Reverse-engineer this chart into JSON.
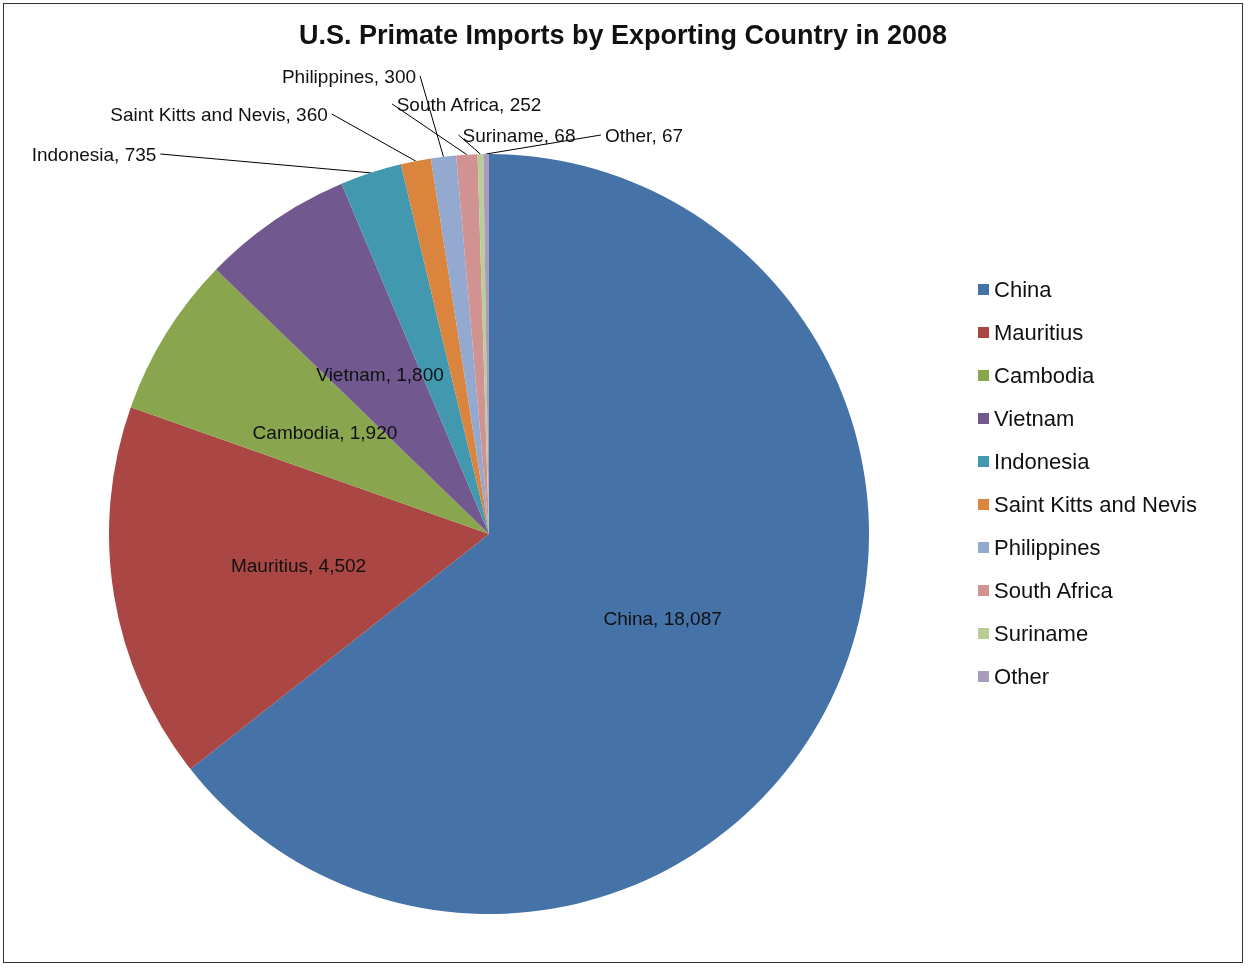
{
  "chart_data": {
    "type": "pie",
    "title": "U.S. Primate Imports by Exporting Country in 2008",
    "categories": [
      "China",
      "Mauritius",
      "Cambodia",
      "Vietnam",
      "Indonesia",
      "Saint Kitts and Nevis",
      "Philippines",
      "South Africa",
      "Suriname",
      "Other"
    ],
    "values": [
      18087,
      4502,
      1920,
      1800,
      735,
      360,
      300,
      252,
      68,
      67
    ],
    "colors": [
      "#4572a7",
      "#aa4643",
      "#89a54e",
      "#71588f",
      "#4198af",
      "#db843d",
      "#93a9cf",
      "#d19392",
      "#b9cd96",
      "#a99bbd"
    ],
    "value_labels": [
      "China, 18,087",
      "Mauritius, 4,502",
      "Cambodia, 1,920",
      "Vietnam, 1,800",
      "Indonesia, 735",
      "Saint Kitts and Nevis, 360",
      "Philippines, 300",
      "South Africa, 252",
      "Suriname, 68",
      "Other, 67"
    ],
    "legend": "right"
  }
}
